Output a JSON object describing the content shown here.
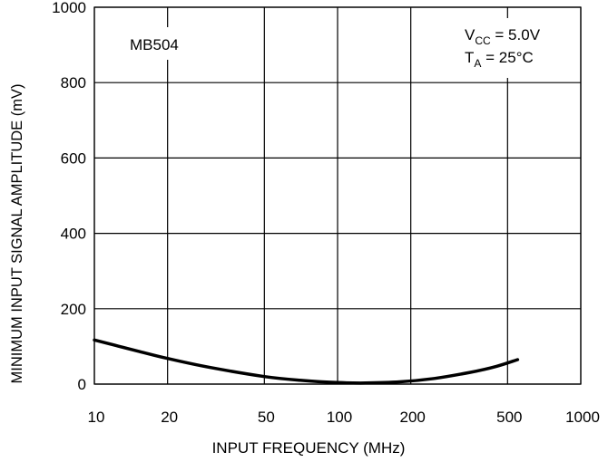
{
  "chart_data": {
    "type": "line",
    "title": "",
    "xlabel": "INPUT FREQUENCY (MHz)",
    "ylabel": "MINIMUM INPUT SIGNAL AMPLITUDE (mV)",
    "x_scale": "log",
    "xlim": [
      10,
      1000
    ],
    "ylim": [
      0,
      1000
    ],
    "grid": true,
    "x_ticks": [
      10,
      20,
      50,
      100,
      200,
      500,
      1000
    ],
    "x_tick_labels": [
      "10",
      "20",
      "50",
      "100",
      "200",
      "500",
      "1000"
    ],
    "y_ticks": [
      0,
      200,
      400,
      600,
      800,
      1000
    ],
    "y_tick_labels": [
      "0",
      "200",
      "400",
      "600",
      "800",
      "1000"
    ],
    "annotations": {
      "device": "MB504",
      "vcc_main": "V",
      "vcc_sub": "CC",
      "vcc_value": " = 5.0V",
      "ta_main": "T",
      "ta_sub": "A",
      "ta_value": " = 25°C"
    },
    "series": [
      {
        "x": [
          10,
          15,
          20,
          30,
          50,
          70,
          100,
          130,
          180,
          250,
          350,
          450,
          550
        ],
        "y": [
          117,
          88,
          68,
          44,
          20,
          10,
          4,
          3,
          6,
          15,
          31,
          47,
          65
        ]
      }
    ]
  }
}
